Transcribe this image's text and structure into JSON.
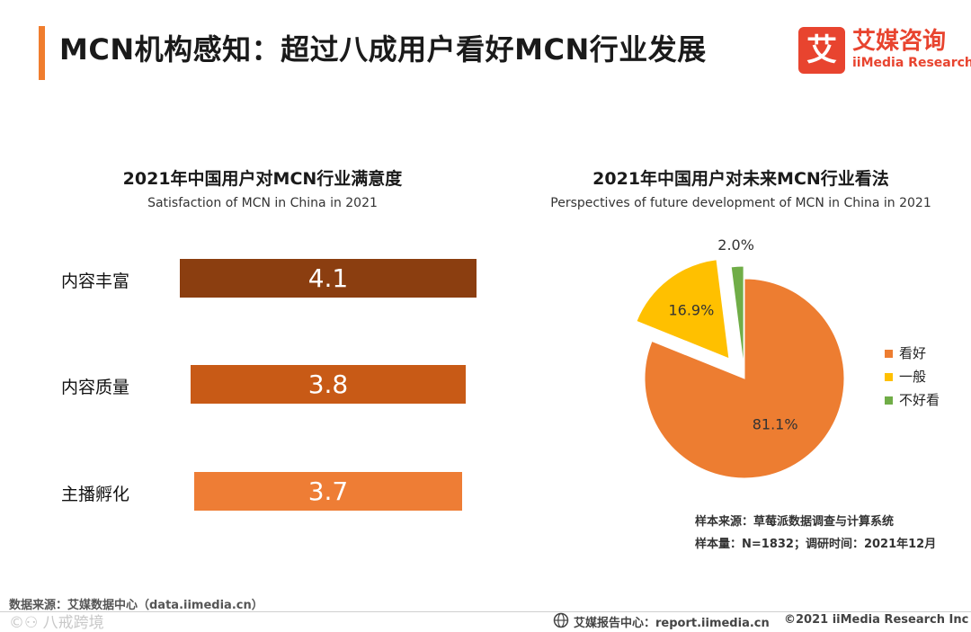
{
  "header": {
    "title": "MCN机构感知：超过八成用户看好MCN行业发展",
    "logo_mark": "艾",
    "logo_cn": "艾媒咨询",
    "logo_en": "iiMedia Research"
  },
  "colors": {
    "accent": "#f07d2e",
    "brand": "#e8442f",
    "bar_dark": "#8b3e10",
    "bar_mid": "#c85a16",
    "bar_light": "#ee7d35",
    "pie_orange": "#ed7d31",
    "pie_yellow": "#ffc000",
    "pie_green": "#70ad47"
  },
  "chart_data": [
    {
      "type": "bar",
      "orientation": "horizontal",
      "title": "2021年中国用户对MCN行业满意度",
      "subtitle": "Satisfaction of MCN in China in 2021",
      "categories": [
        "内容丰富",
        "内容质量",
        "主播孵化"
      ],
      "values": [
        4.1,
        3.8,
        3.7
      ],
      "data_labels": [
        "4.1",
        "3.8",
        "3.7"
      ]
    },
    {
      "type": "pie",
      "title": "2021年中国用户对未来MCN行业看法",
      "subtitle": "Perspectives of future development of MCN in China in 2021",
      "categories": [
        "看好",
        "一般",
        "不好看"
      ],
      "values": [
        81.1,
        16.9,
        2.0
      ],
      "data_labels": [
        "81.1%",
        "16.9%",
        "2.0%"
      ],
      "legend_position": "right",
      "exploded": [
        "一般",
        "不好看"
      ]
    }
  ],
  "sample": {
    "source": "样本来源：草莓派数据调查与计算系统",
    "size": "样本量：N=1832；调研时间：2021年12月"
  },
  "footer": {
    "data_source": "数据来源：艾媒数据中心（data.iimedia.cn）",
    "watermark": "©⚇ 八戒跨境",
    "report_center": "艾媒报告中心：report.iimedia.cn",
    "copyright": "©2021 iiMedia Research Inc"
  }
}
